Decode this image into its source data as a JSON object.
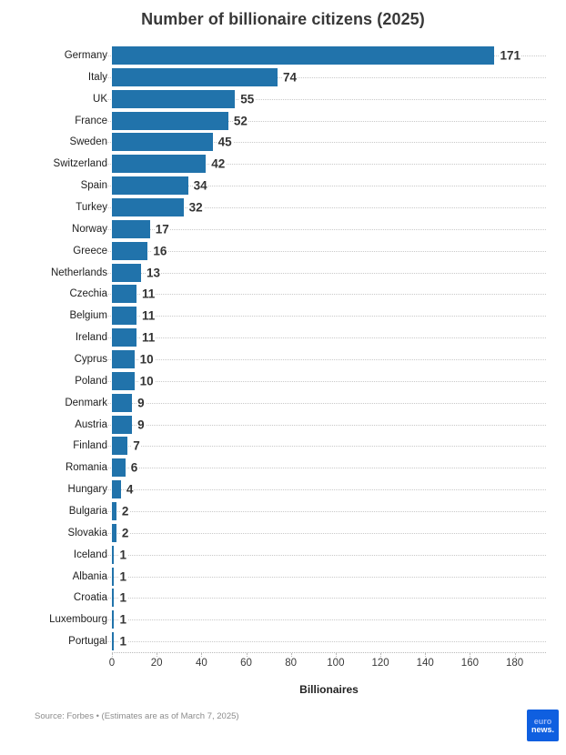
{
  "title": "Number of billionaire citizens (2025)",
  "chart_data": {
    "type": "bar",
    "orientation": "horizontal",
    "title": "Number of billionaire citizens (2025)",
    "xlabel": "Billionaires",
    "categories": [
      "Germany",
      "Italy",
      "UK",
      "France",
      "Sweden",
      "Switzerland",
      "Spain",
      "Turkey",
      "Norway",
      "Greece",
      "Netherlands",
      "Czechia",
      "Belgium",
      "Ireland",
      "Cyprus",
      "Poland",
      "Denmark",
      "Austria",
      "Finland",
      "Romania",
      "Hungary",
      "Bulgaria",
      "Slovakia",
      "Iceland",
      "Albania",
      "Croatia",
      "Luxembourg",
      "Portugal"
    ],
    "values": [
      171,
      74,
      55,
      52,
      45,
      42,
      34,
      32,
      17,
      16,
      13,
      11,
      11,
      11,
      10,
      10,
      9,
      9,
      7,
      6,
      4,
      2,
      2,
      1,
      1,
      1,
      1,
      1
    ],
    "value_labels_shown": true,
    "xticks": [
      0,
      20,
      40,
      60,
      80,
      100,
      120,
      140,
      160,
      180
    ],
    "xlim": [
      0,
      194
    ],
    "grid": "dotted horizontal lines per category, dotted bottom axis",
    "legend": "none",
    "bar_color": "#2173ab"
  },
  "footer": {
    "source": "Source: Forbes • (Estimates are as of March 7, 2025)",
    "logo": {
      "line1": "euro",
      "line2": "news.",
      "bg_color": "#0f5fe0"
    }
  }
}
